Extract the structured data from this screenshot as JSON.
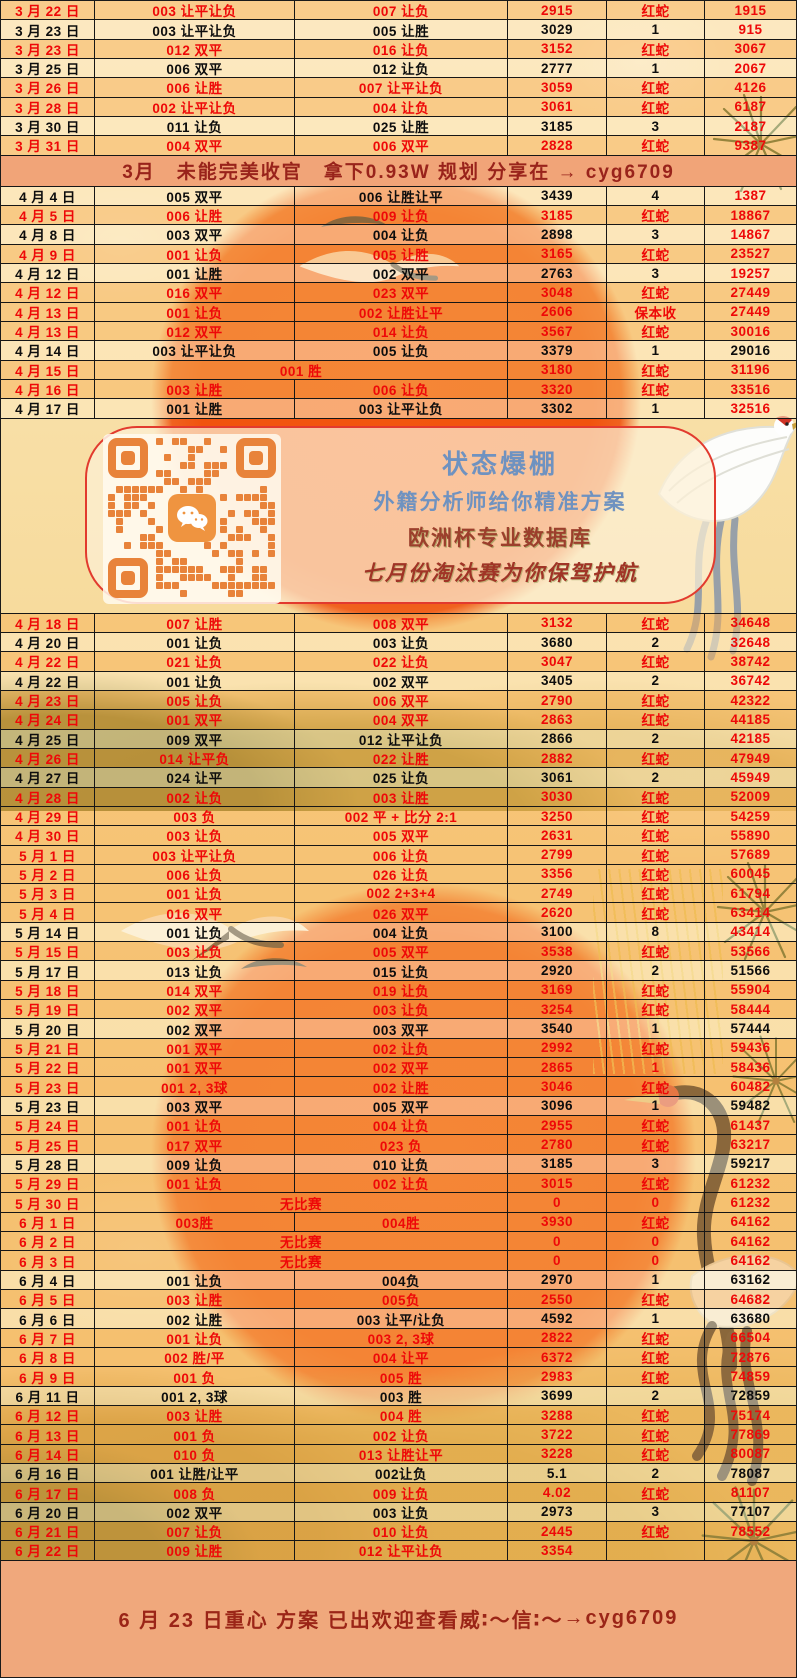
{
  "colors": {
    "accent_red": "#ee0808",
    "text_black": "#0d0d0d",
    "banner_bg": "#f1a478",
    "banner_text": "#99231b",
    "qr_blue": "#6f92c0",
    "qr_dark_red": "#9c3f2c",
    "qr_orange": "#e8833a",
    "sun_orange": "#f1530d"
  },
  "march_rows": [
    {
      "d": "3 月 22 日",
      "p1": "003 让平让负",
      "p2": "007 让负",
      "n": "2915",
      "r": "红蛇",
      "t": "1915",
      "c": "red"
    },
    {
      "d": "3 月 23 日",
      "p1": "003 让平让负",
      "p2": "005 让胜",
      "n": "3029",
      "r": "1",
      "t": "915",
      "c": "black"
    },
    {
      "d": "3 月 23 日",
      "p1": "012 双平",
      "p2": "016 让负",
      "n": "3152",
      "r": "红蛇",
      "t": "3067",
      "c": "red"
    },
    {
      "d": "3 月 25 日",
      "p1": "006 双平",
      "p2": "012 让负",
      "n": "2777",
      "r": "1",
      "t": "2067",
      "c": "black"
    },
    {
      "d": "3 月 26 日",
      "p1": "006 让胜",
      "p2": "007 让平让负",
      "n": "3059",
      "r": "红蛇",
      "t": "4126",
      "c": "red"
    },
    {
      "d": "3 月 28 日",
      "p1": "002 让平让负",
      "p2": "004 让负",
      "n": "3061",
      "r": "红蛇",
      "t": "6187",
      "c": "red"
    },
    {
      "d": "3 月 30 日",
      "p1": "011 让负",
      "p2": "025 让胜",
      "n": "3185",
      "r": "3",
      "t": "2187",
      "c": "black"
    },
    {
      "d": "3 月 31 日",
      "p1": "004 双平",
      "p2": "006 双平",
      "n": "2828",
      "r": "红蛇",
      "t": "9387",
      "c": "red"
    }
  ],
  "march_banner": {
    "text": "3月　未能完美收官　拿下0.93W 规划 分享在 → cyg6709"
  },
  "april_rows": [
    {
      "d": "4 月 4 日",
      "p1": "005 双平",
      "p2": "006 让胜让平",
      "n": "3439",
      "r": "4",
      "t": "1387",
      "c": "black"
    },
    {
      "d": "4 月 5 日",
      "p1": "006 让胜",
      "p2": "009 让负",
      "n": "3185",
      "r": "红蛇",
      "t": "18867",
      "c": "red"
    },
    {
      "d": "4 月 8 日",
      "p1": "003 双平",
      "p2": "004 让负",
      "n": "2898",
      "r": "3",
      "t": "14867",
      "c": "black"
    },
    {
      "d": "4 月 9 日",
      "p1": "001 让负",
      "p2": "005 让胜",
      "n": "3165",
      "r": "红蛇",
      "t": "23527",
      "c": "red"
    },
    {
      "d": "4 月 12 日",
      "p1": "001 让胜",
      "p2": "002 双平",
      "n": "2763",
      "r": "3",
      "t": "19257",
      "c": "black"
    },
    {
      "d": "4 月 12 日",
      "p1": "016 双平",
      "p2": "023 双平",
      "n": "3048",
      "r": "红蛇",
      "t": "27449",
      "c": "red"
    },
    {
      "d": "4 月 13 日",
      "p1": "001 让负",
      "p2": "002 让胜让平",
      "n": "2606",
      "r": "保本收",
      "t": "27449",
      "c": "red"
    },
    {
      "d": "4 月 13 日",
      "p1": "012 双平",
      "p2": "014 让负",
      "n": "3567",
      "r": "红蛇",
      "t": "30016",
      "c": "red"
    },
    {
      "d": "4 月 14 日",
      "p1": "003 让平让负",
      "p2": "005 让负",
      "n": "3379",
      "r": "1",
      "t": "29016",
      "c": "black",
      "tb": true
    },
    {
      "d": "4 月 15 日",
      "p1": "001 胜",
      "p2": null,
      "n": "3180",
      "r": "红蛇",
      "t": "31196",
      "c": "red"
    },
    {
      "d": "4 月 16 日",
      "p1": "003 让胜",
      "p2": "006 让负",
      "n": "3320",
      "r": "红蛇",
      "t": "33516",
      "c": "red"
    },
    {
      "d": "4 月 17 日",
      "p1": "001 让胜",
      "p2": "003 让平让负",
      "n": "3302",
      "r": "1",
      "t": "32516",
      "c": "black"
    }
  ],
  "qr_panel": {
    "line1": "状态爆棚",
    "line2": "外籍分析师给你精准方案",
    "line3": "欧洲杯专业数据库",
    "line4": "七月份淘汰赛为你保驾护航"
  },
  "main_rows": [
    {
      "d": "4 月 18 日",
      "p1": "007 让胜",
      "p2": "008 双平",
      "n": "3132",
      "r": "红蛇",
      "t": "34648",
      "c": "red"
    },
    {
      "d": "4 月 20 日",
      "p1": "001 让负",
      "p2": "003 让负",
      "n": "3680",
      "r": "2",
      "t": "32648",
      "c": "black"
    },
    {
      "d": "4 月 22 日",
      "p1": "021 让负",
      "p2": "022 让负",
      "n": "3047",
      "r": "红蛇",
      "t": "38742",
      "c": "red"
    },
    {
      "d": "4 月 22 日",
      "p1": "001 让负",
      "p2": "002 双平",
      "n": "3405",
      "r": "2",
      "t": "36742",
      "c": "black"
    },
    {
      "d": "4 月 23 日",
      "p1": "005 让负",
      "p2": "006 双平",
      "n": "2790",
      "r": "红蛇",
      "t": "42322",
      "c": "red"
    },
    {
      "d": "4 月 24 日",
      "p1": "001 双平",
      "p2": "004 双平",
      "n": "2863",
      "r": "红蛇",
      "t": "44185",
      "c": "red"
    },
    {
      "d": "4 月 25 日",
      "p1": "009 双平",
      "p2": "012 让平让负",
      "n": "2866",
      "r": "2",
      "t": "42185",
      "c": "black"
    },
    {
      "d": "4 月 26 日",
      "p1": "014 让平负",
      "p2": "022 让胜",
      "n": "2882",
      "r": "红蛇",
      "t": "47949",
      "c": "red"
    },
    {
      "d": "4 月 27 日",
      "p1": "024 让平",
      "p2": "025 让负",
      "n": "3061",
      "r": "2",
      "t": "45949",
      "c": "black"
    },
    {
      "d": "4 月 28 日",
      "p1": "002 让负",
      "p2": "003 让胜",
      "n": "3030",
      "r": "红蛇",
      "t": "52009",
      "c": "red"
    },
    {
      "d": "4 月 29 日",
      "p1": "003 负",
      "p2": "002 平 + 比分 2:1",
      "n": "3250",
      "r": "红蛇",
      "t": "54259",
      "c": "red"
    },
    {
      "d": "4 月 30 日",
      "p1": "003 让负",
      "p2": "005 双平",
      "n": "2631",
      "r": "红蛇",
      "t": "55890",
      "c": "red"
    },
    {
      "d": "5 月 1 日",
      "p1": "003 让平让负",
      "p2": "006 让负",
      "n": "2799",
      "r": "红蛇",
      "t": "57689",
      "c": "red"
    },
    {
      "d": "5 月 2 日",
      "p1": "006 让负",
      "p2": "026 让负",
      "n": "3356",
      "r": "红蛇",
      "t": "60045",
      "c": "red"
    },
    {
      "d": "5 月 3 日",
      "p1": "001 让负",
      "p2": "002 2+3+4",
      "n": "2749",
      "r": "红蛇",
      "t": "61794",
      "c": "red"
    },
    {
      "d": "5 月 4 日",
      "p1": "016 双平",
      "p2": "026 双平",
      "n": "2620",
      "r": "红蛇",
      "t": "63414",
      "c": "red"
    },
    {
      "d": "5 月 14 日",
      "p1": "001 让负",
      "p2": "004 让负",
      "n": "3100",
      "r": "8",
      "t": "43414",
      "c": "black"
    },
    {
      "d": "5 月 15 日",
      "p1": "003 让负",
      "p2": "005 双平",
      "n": "3538",
      "r": "红蛇",
      "t": "53566",
      "c": "red"
    },
    {
      "d": "5 月 17 日",
      "p1": "013 让负",
      "p2": "015 让负",
      "n": "2920",
      "r": "2",
      "t": "51566",
      "c": "black",
      "tb": true
    },
    {
      "d": "5 月 18 日",
      "p1": "014 双平",
      "p2": "019 让负",
      "n": "3169",
      "r": "红蛇",
      "t": "55904",
      "c": "red"
    },
    {
      "d": "5 月 19 日",
      "p1": "002 双平",
      "p2": "003 让负",
      "n": "3254",
      "r": "红蛇",
      "t": "58444",
      "c": "red"
    },
    {
      "d": "5 月 20 日",
      "p1": "002 双平",
      "p2": "003 双平",
      "n": "3540",
      "r": "1",
      "t": "57444",
      "c": "black",
      "tb": true
    },
    {
      "d": "5 月 21 日",
      "p1": "001 双平",
      "p2": "002 让负",
      "n": "2992",
      "r": "红蛇",
      "t": "59436",
      "c": "red"
    },
    {
      "d": "5 月 22 日",
      "p1": "001 双平",
      "p2": "002 双平",
      "n": "2865",
      "r": "1",
      "t": "58436",
      "c": "red"
    },
    {
      "d": "5 月 23 日",
      "p1": "001 2, 3球",
      "p2": "002 让胜",
      "n": "3046",
      "r": "红蛇",
      "t": "60482",
      "c": "red"
    },
    {
      "d": "5 月 23 日",
      "p1": "003 双平",
      "p2": "005 双平",
      "n": "3096",
      "r": "1",
      "t": "59482",
      "c": "black",
      "tb": true
    },
    {
      "d": "5 月 24 日",
      "p1": "001 让负",
      "p2": "004 让负",
      "n": "2955",
      "r": "红蛇",
      "t": "61437",
      "c": "red"
    },
    {
      "d": "5 月 25 日",
      "p1": "017 双平",
      "p2": "023 负",
      "n": "2780",
      "r": "红蛇",
      "t": "63217",
      "c": "red"
    },
    {
      "d": "5 月 28 日",
      "p1": "009 让负",
      "p2": "010 让负",
      "n": "3185",
      "r": "3",
      "t": "59217",
      "c": "black",
      "tb": true
    },
    {
      "d": "5 月 29 日",
      "p1": "001 让负",
      "p2": "002 让负",
      "n": "3015",
      "r": "红蛇",
      "t": "61232",
      "c": "red"
    },
    {
      "d": "5 月 30 日",
      "p1": "无比赛",
      "p2": null,
      "n": "0",
      "r": "0",
      "t": "61232",
      "c": "red"
    },
    {
      "d": "6 月 1 日",
      "p1": "003胜",
      "p2": "004胜",
      "n": "3930",
      "r": "红蛇",
      "t": "64162",
      "c": "red"
    },
    {
      "d": "6 月 2 日",
      "p1": "无比赛",
      "p2": null,
      "n": "0",
      "r": "0",
      "t": "64162",
      "c": "red"
    },
    {
      "d": "6 月 3 日",
      "p1": "无比赛",
      "p2": null,
      "n": "0",
      "r": "0",
      "t": "64162",
      "c": "red"
    },
    {
      "d": "6 月 4 日",
      "p1": "001 让负",
      "p2": "004负",
      "n": "2970",
      "r": "1",
      "t": "63162",
      "c": "black",
      "tb": true
    },
    {
      "d": "6 月 5 日",
      "p1": "003 让胜",
      "p2": "005负",
      "n": "2550",
      "r": "红蛇",
      "t": "64682",
      "c": "red"
    },
    {
      "d": "6 月 6 日",
      "p1": "002 让胜",
      "p2": "003 让平/让负",
      "n": "4592",
      "r": "1",
      "t": "63680",
      "c": "black",
      "tb": true
    },
    {
      "d": "6 月 7 日",
      "p1": "001 让负",
      "p2": "003 2, 3球",
      "n": "2822",
      "r": "红蛇",
      "t": "66504",
      "c": "red"
    },
    {
      "d": "6 月 8 日",
      "p1": "002 胜/平",
      "p2": "004 让平",
      "n": "6372",
      "r": "红蛇",
      "t": "72876",
      "c": "red"
    },
    {
      "d": "6 月 9 日",
      "p1": "001 负",
      "p2": "005 胜",
      "n": "2983",
      "r": "红蛇",
      "t": "74859",
      "c": "red"
    },
    {
      "d": "6 月 11 日",
      "p1": "001 2, 3球",
      "p2": "003 胜",
      "n": "3699",
      "r": "2",
      "t": "72859",
      "c": "black",
      "tb": true
    },
    {
      "d": "6 月 12 日",
      "p1": "003 让胜",
      "p2": "004 胜",
      "n": "3288",
      "r": "红蛇",
      "t": "75174",
      "c": "red"
    },
    {
      "d": "6 月 13 日",
      "p1": "001 负",
      "p2": "002 让负",
      "n": "3722",
      "r": "红蛇",
      "t": "77869",
      "c": "red"
    },
    {
      "d": "6 月 14 日",
      "p1": "010 负",
      "p2": "013 让胜让平",
      "n": "3228",
      "r": "红蛇",
      "t": "80087",
      "c": "red"
    },
    {
      "d": "6 月 16 日",
      "p1": "001 让胜/让平",
      "p2": "002让负",
      "n": "5.1",
      "r": "2",
      "t": "78087",
      "c": "black",
      "tb": true
    },
    {
      "d": "6 月 17 日",
      "p1": "008 负",
      "p2": "009 让负",
      "n": "4.02",
      "r": "红蛇",
      "t": "81107",
      "c": "red"
    },
    {
      "d": "6 月 20 日",
      "p1": "002 双平",
      "p2": "003 让负",
      "n": "2973",
      "r": "3",
      "t": "77107",
      "c": "black",
      "tb": true
    },
    {
      "d": "6 月 21 日",
      "p1": "007 让负",
      "p2": "010 让负",
      "n": "2445",
      "r": "红蛇",
      "t": "78552",
      "c": "red"
    },
    {
      "d": "6 月 22 日",
      "p1": "009 让胜",
      "p2": "012 让平让负",
      "n": "3354",
      "r": "",
      "t": "",
      "c": "red"
    }
  ],
  "footer": {
    "part1": "6 月 23 日重心 方案 已出",
    "part2": "欢迎查看",
    "part3": "威∶～信∶～",
    "arrow": "→",
    "part4": "cyg6709"
  }
}
